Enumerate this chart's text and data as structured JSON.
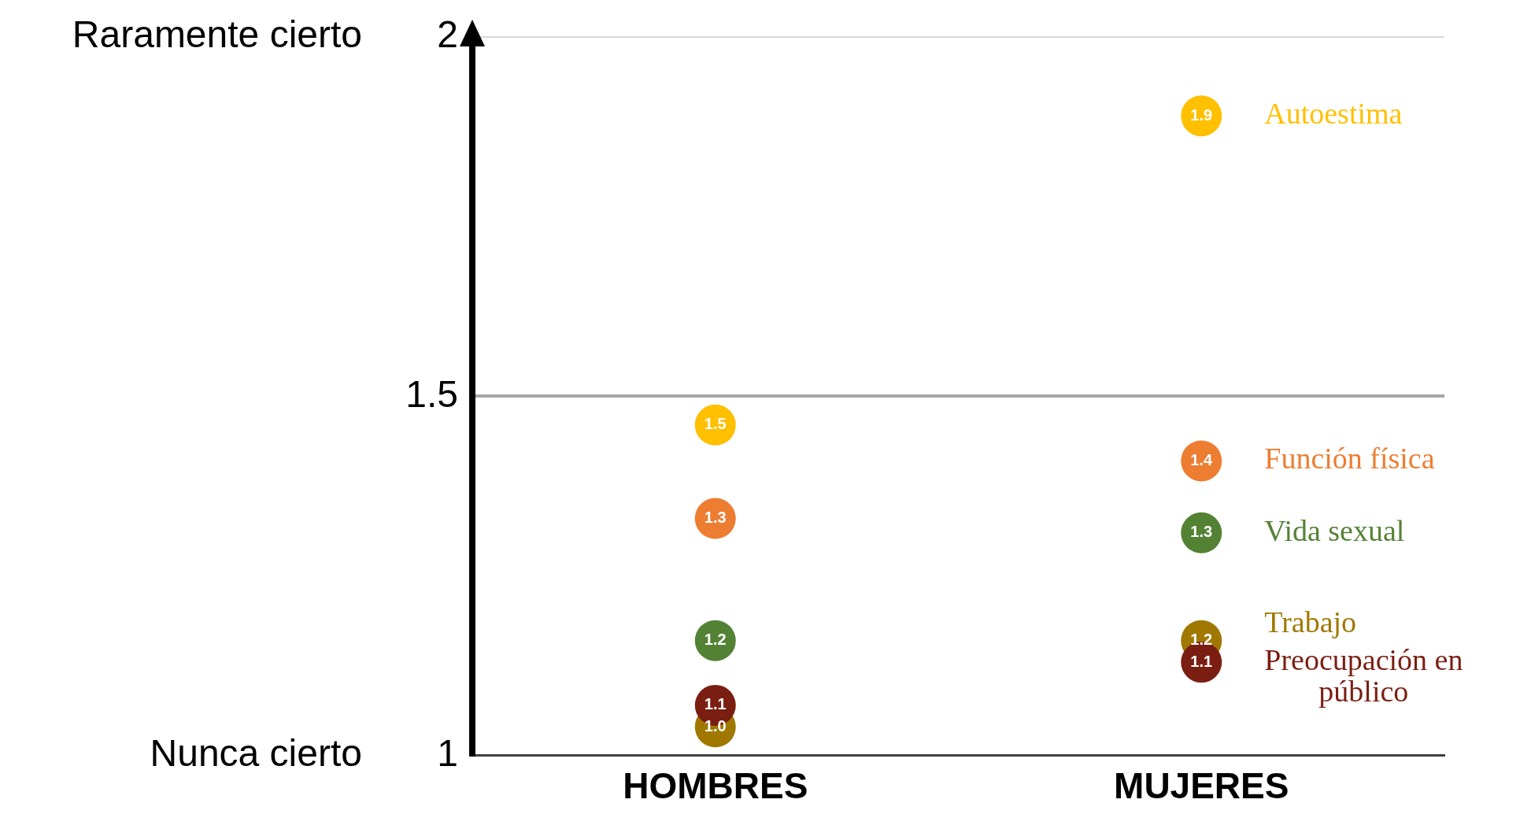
{
  "chart_data": {
    "type": "scatter",
    "categories": [
      "HOMBRES",
      "MUJERES"
    ],
    "series": [
      {
        "name": "Autoestima",
        "color": "#ffc000",
        "values": [
          1.46,
          1.89
        ],
        "value_labels": [
          "1.5",
          "1.9"
        ]
      },
      {
        "name": "Función física",
        "color": "#ed7d31",
        "values": [
          1.33,
          1.41
        ],
        "value_labels": [
          "1.3",
          "1.4"
        ]
      },
      {
        "name": "Vida sexual",
        "color": "#548235",
        "values": [
          1.16,
          1.31
        ],
        "value_labels": [
          "1.2",
          "1.3"
        ]
      },
      {
        "name": "Preocupación en público",
        "color": "#7b1e12",
        "values": [
          1.07,
          1.13
        ],
        "value_labels": [
          "1.1",
          "1.1"
        ]
      },
      {
        "name": "Trabajo",
        "color": "#a07800",
        "values": [
          1.04,
          1.16
        ],
        "value_labels": [
          "1.0",
          "1.2"
        ]
      }
    ],
    "ylim": [
      1,
      2
    ],
    "yticks": [
      1,
      1.5,
      2
    ],
    "grid": "y",
    "legend": false,
    "marker": "circle",
    "annotations": [
      "Raramente cierto",
      "Nunca cierto"
    ]
  }
}
